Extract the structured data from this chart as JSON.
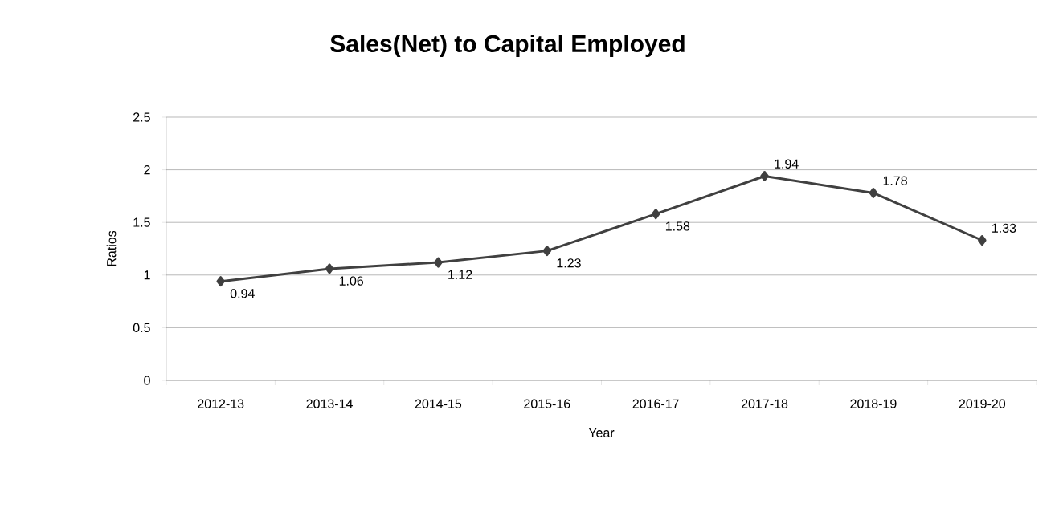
{
  "chart_data": {
    "type": "line",
    "title": "Sales(Net) to Capital Employed",
    "xlabel": "Year",
    "ylabel": "Ratios",
    "categories": [
      "2012-13",
      "2013-14",
      "2014-15",
      "2015-16",
      "2016-17",
      "2017-18",
      "2018-19",
      "2019-20"
    ],
    "values": [
      0.94,
      1.06,
      1.12,
      1.23,
      1.58,
      1.94,
      1.78,
      1.33
    ],
    "color": "#404040",
    "ylim": [
      0,
      2.5
    ],
    "yticks": [
      0,
      0.5,
      1,
      1.5,
      2,
      2.5
    ],
    "grid": "y",
    "marker": "diamond",
    "line_style": "solid",
    "data_labels": true
  }
}
